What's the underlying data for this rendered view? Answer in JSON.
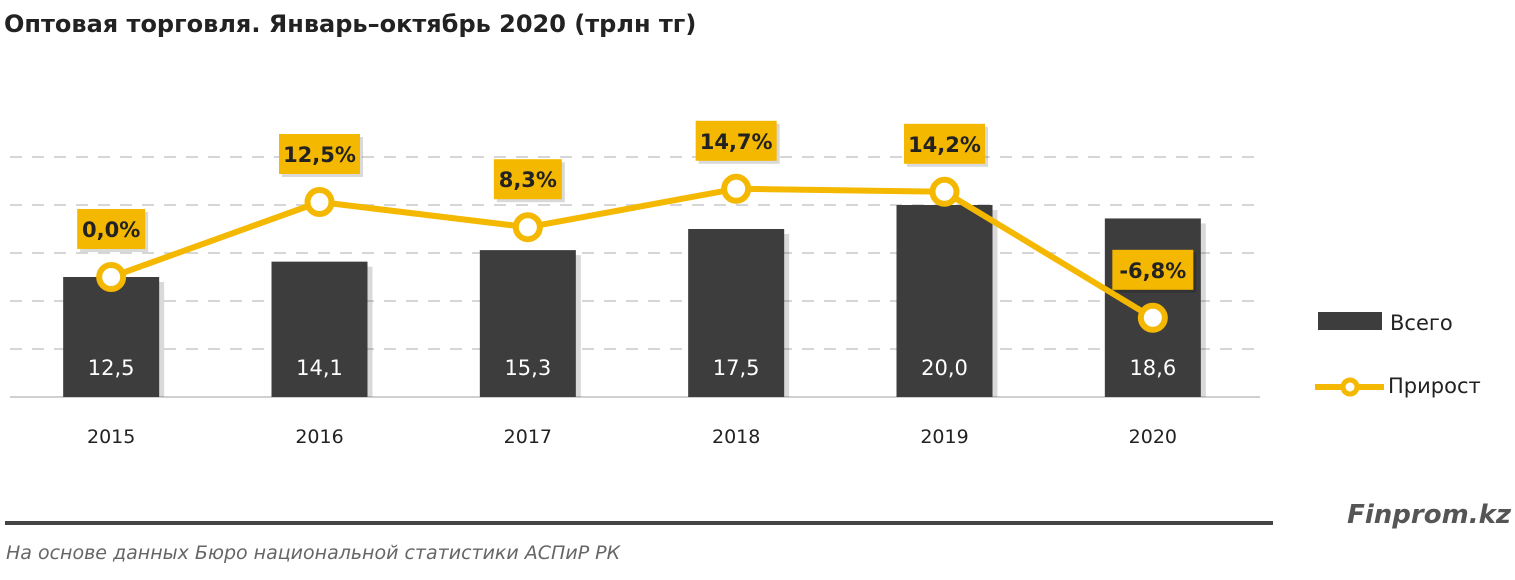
{
  "chart_data": {
    "type": "bar",
    "title": "Оптовая торговля. Январь–октябрь 2020 (трлн тг)",
    "categories": [
      "2015",
      "2016",
      "2017",
      "2018",
      "2019",
      "2020"
    ],
    "series": [
      {
        "name": "Всего",
        "type": "bar",
        "values": [
          12.5,
          14.1,
          15.3,
          17.5,
          20.0,
          18.6
        ],
        "labels": [
          "12,5",
          "14,1",
          "15,3",
          "17,5",
          "20,0",
          "18,6"
        ],
        "color": "#3d3d3d"
      },
      {
        "name": "Прирост",
        "type": "line",
        "values": [
          0.0,
          12.5,
          8.3,
          14.7,
          14.2,
          -6.8
        ],
        "labels": [
          "0,0%",
          "12,5%",
          "8,3%",
          "14,7%",
          "14,2%",
          "-6,8%"
        ],
        "color": "#f5b800"
      }
    ],
    "ylim": [
      0,
      25
    ],
    "y2lim": [
      -20,
      20
    ],
    "grid": true,
    "legend": "right"
  },
  "footer": {
    "brand": "Finprom.kz",
    "source": "На основе данных Бюро национальной статистики АСПиР РК"
  }
}
